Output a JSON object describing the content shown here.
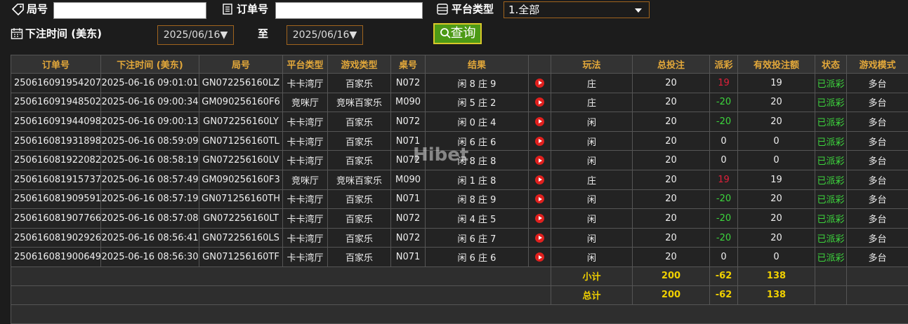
{
  "filters": {
    "round_label": "局号",
    "order_label": "订单号",
    "platform_label": "平台类型",
    "platform_value": "1.全部",
    "time_label": "下注时间 (美东)",
    "date_from": "2025/06/16",
    "to_label": "至",
    "date_to": "2025/06/16",
    "query_button": "查询"
  },
  "watermark": "Hibet",
  "table": {
    "columns": [
      "订单号",
      "下注时间 (美东)",
      "局号",
      "平台类型",
      "游戏类型",
      "桌号",
      "结果",
      "玩法",
      "总投注",
      "派彩",
      "有效投注额",
      "状态",
      "游戏模式"
    ],
    "rows": [
      [
        "250616091954207",
        "2025-06-16 09:01:01",
        "GN072256160LZ",
        "卡卡湾厅",
        "百家乐",
        "N072",
        "闲 8 庄 9",
        "庄",
        "20",
        "19",
        "19",
        "已派彩",
        "多台"
      ],
      [
        "250616091948502",
        "2025-06-16 09:00:34",
        "GM090256160F6",
        "竞咪厅",
        "竞咪百家乐",
        "M090",
        "闲 5 庄 2",
        "庄",
        "20",
        "-20",
        "20",
        "已派彩",
        "多台"
      ],
      [
        "250616091944098",
        "2025-06-16 09:00:13",
        "GN072256160LY",
        "卡卡湾厅",
        "百家乐",
        "N072",
        "闲 0 庄 4",
        "闲",
        "20",
        "-20",
        "20",
        "已派彩",
        "多台"
      ],
      [
        "250616081931898",
        "2025-06-16 08:59:09",
        "GN071256160TL",
        "卡卡湾厅",
        "百家乐",
        "N071",
        "闲 6 庄 6",
        "闲",
        "20",
        "0",
        "0",
        "已派彩",
        "多台"
      ],
      [
        "250616081922082",
        "2025-06-16 08:58:19",
        "GN072256160LV",
        "卡卡湾厅",
        "百家乐",
        "N072",
        "闲 8 庄 8",
        "闲",
        "20",
        "0",
        "0",
        "已派彩",
        "多台"
      ],
      [
        "250616081915737",
        "2025-06-16 08:57:49",
        "GM090256160F3",
        "竞咪厅",
        "竞咪百家乐",
        "M090",
        "闲 1 庄 8",
        "庄",
        "20",
        "19",
        "19",
        "已派彩",
        "多台"
      ],
      [
        "250616081909591",
        "2025-06-16 08:57:19",
        "GN071256160TH",
        "卡卡湾厅",
        "百家乐",
        "N071",
        "闲 8 庄 9",
        "闲",
        "20",
        "-20",
        "20",
        "已派彩",
        "多台"
      ],
      [
        "250616081907766",
        "2025-06-16 08:57:08",
        "GN072256160LT",
        "卡卡湾厅",
        "百家乐",
        "N072",
        "闲 4 庄 5",
        "闲",
        "20",
        "-20",
        "20",
        "已派彩",
        "多台"
      ],
      [
        "250616081902926",
        "2025-06-16 08:56:41",
        "GN072256160LS",
        "卡卡湾厅",
        "百家乐",
        "N072",
        "闲 6 庄 7",
        "闲",
        "20",
        "-20",
        "20",
        "已派彩",
        "多台"
      ],
      [
        "250616081900649",
        "2025-06-16 08:56:30",
        "GN071256160TF",
        "卡卡湾厅",
        "百家乐",
        "N071",
        "闲 6 庄 6",
        "闲",
        "20",
        "0",
        "0",
        "已派彩",
        "多台"
      ]
    ],
    "summary": [
      [
        "小计",
        "200",
        "-62",
        "138"
      ],
      [
        "总计",
        "200",
        "-62",
        "138"
      ]
    ]
  }
}
